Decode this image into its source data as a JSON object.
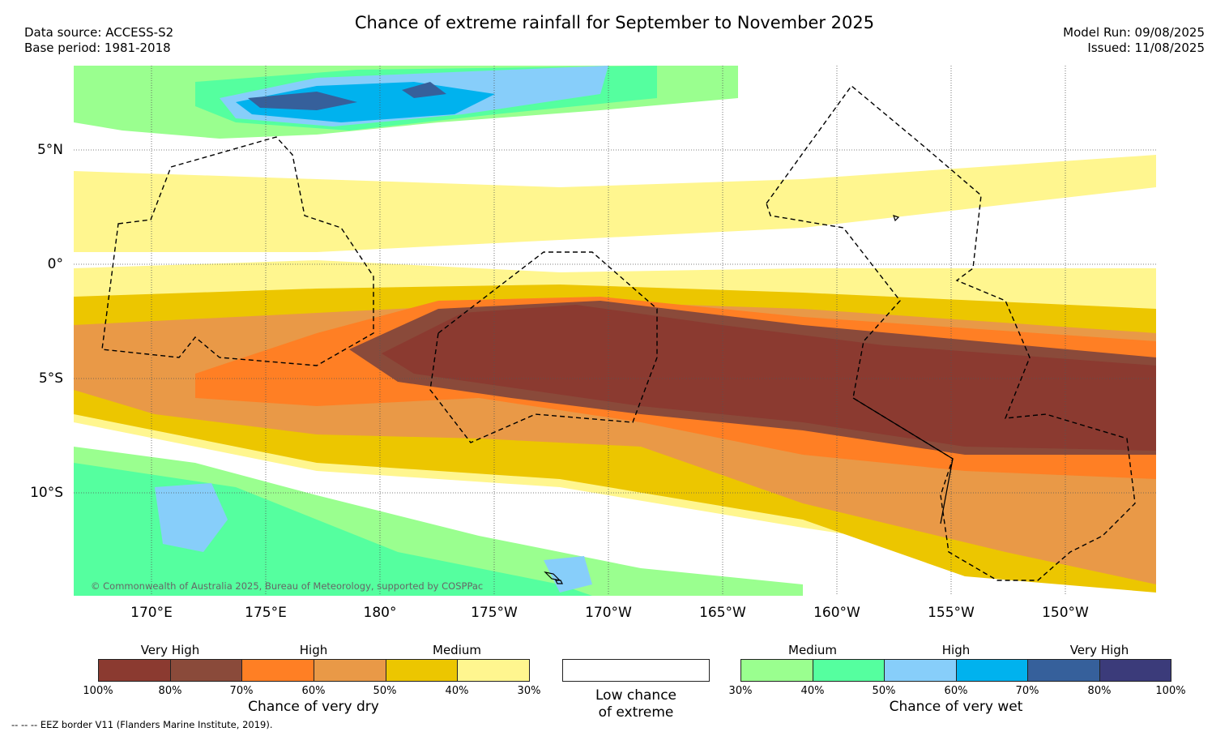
{
  "title": "Chance of extreme rainfall for September to November 2025",
  "data_source": "Data source: ACCESS-S2",
  "base_period": "Base period: 1981-2018",
  "model_run": "Model Run: 09/08/2025",
  "issued": "Issued: 11/08/2025",
  "lat_labels": [
    "5°N",
    "0°",
    "5°S",
    "10°S"
  ],
  "lon_labels": [
    "170°E",
    "175°E",
    "180°",
    "175°W",
    "170°W",
    "165°W",
    "160°W",
    "155°W",
    "150°W"
  ],
  "copyright": "© Commonwealth of Australia 2025, Bureau of Meteorology, supported by COSPPac",
  "legend_dry": {
    "headers": [
      "Very High",
      "High",
      "Medium"
    ],
    "colors": [
      "#8b3a30",
      "#8a4a3a",
      "#ff7f24",
      "#e99947",
      "#ecc600",
      "#fff68f"
    ],
    "ticks": [
      "100%",
      "80%",
      "70%",
      "60%",
      "50%",
      "40%",
      "30%"
    ],
    "caption": "Chance of very dry"
  },
  "legend_low": {
    "caption_line1": "Low chance",
    "caption_line2": "of extreme"
  },
  "legend_wet": {
    "headers": [
      "Medium",
      "High",
      "Very High"
    ],
    "colors": [
      "#9aff8f",
      "#55ff9f",
      "#87cefa",
      "#00b2ee",
      "#36609b",
      "#3b3b7a"
    ],
    "ticks": [
      "30%",
      "40%",
      "50%",
      "60%",
      "70%",
      "80%",
      "100%"
    ],
    "caption": "Chance of very wet"
  },
  "eez_note": "-- -- -- EEZ border V11 (Flanders Marine Institute, 2019)."
}
